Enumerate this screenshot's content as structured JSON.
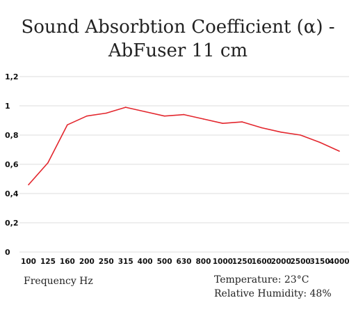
{
  "chart_data": {
    "type": "line",
    "title_line1": "Sound Absorbtion Coefficient (α) -",
    "title_line2": "AbFuser 11 cm",
    "xlabel": "Frequency Hz",
    "ylabel": "",
    "conditions": {
      "temperature": "Temperature: 23°C",
      "humidity": "Relative Humidity: 48%"
    },
    "categories": [
      "100",
      "125",
      "160",
      "200",
      "250",
      "315",
      "400",
      "500",
      "630",
      "800",
      "1000",
      "1250",
      "1600",
      "2000",
      "2500",
      "3150",
      "4000"
    ],
    "series": [
      {
        "values": [
          0.46,
          0.61,
          0.87,
          0.93,
          0.95,
          0.99,
          0.96,
          0.93,
          0.94,
          0.91,
          0.88,
          0.89,
          0.85,
          0.82,
          0.8,
          0.75,
          0.69
        ],
        "color": "#e3262d"
      }
    ],
    "yticks": [
      "0",
      "0,2",
      "0,4",
      "0,6",
      "0,8",
      "1",
      "1,2"
    ],
    "ylim": [
      0,
      1.2
    ],
    "grid": true,
    "legend": "none"
  }
}
